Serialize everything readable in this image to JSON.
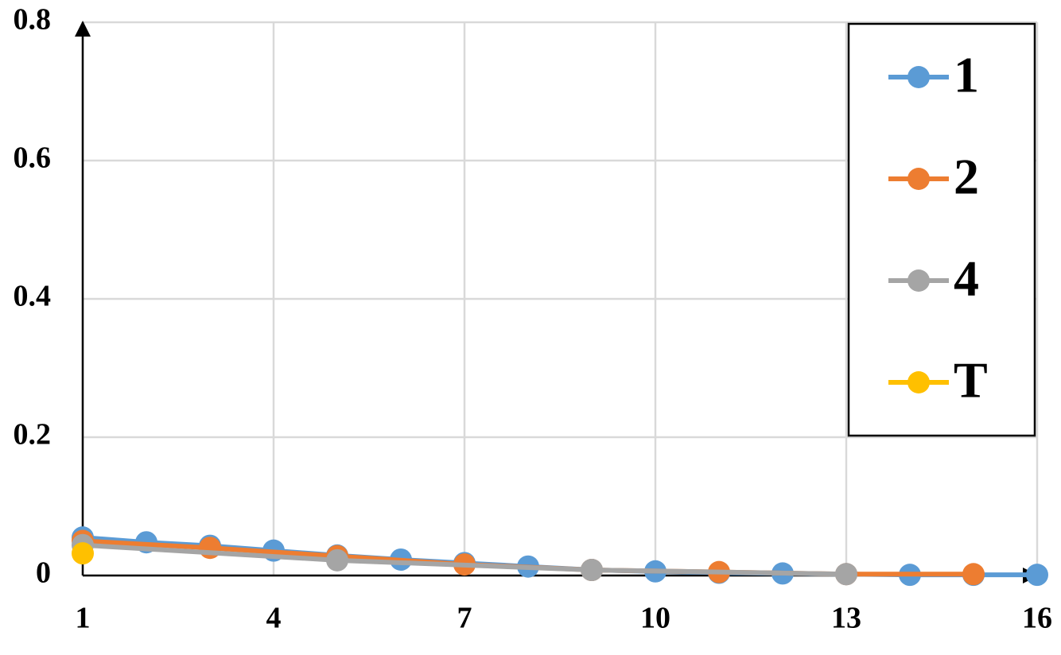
{
  "chart_data": {
    "type": "line",
    "xlim": [
      1,
      16
    ],
    "xticks": [
      1,
      4,
      7,
      10,
      13,
      16
    ],
    "ylim": [
      0,
      0.8
    ],
    "yticks": [
      0,
      0.2,
      0.4,
      0.6,
      0.8
    ],
    "grid": true,
    "legend": "upper right",
    "series": [
      {
        "name": "1",
        "color": "#5b9bd5",
        "x": [
          1,
          2,
          3,
          4,
          5,
          6,
          7,
          8,
          9,
          10,
          11,
          12,
          13,
          14,
          15,
          16
        ],
        "values": [
          0.055,
          0.048,
          0.043,
          0.036,
          0.029,
          0.023,
          0.018,
          0.013,
          0.008,
          0.006,
          0.004,
          0.003,
          0.002,
          0.001,
          0.001,
          0.001
        ]
      },
      {
        "name": "2",
        "color": "#ed7d31",
        "x": [
          1,
          3,
          5,
          7,
          9,
          11,
          13,
          15
        ],
        "values": [
          0.05,
          0.04,
          0.028,
          0.016,
          0.008,
          0.005,
          0.002,
          0.002
        ]
      },
      {
        "name": "4",
        "color": "#a5a5a5",
        "x": [
          1,
          5,
          9,
          13
        ],
        "values": [
          0.044,
          0.022,
          0.008,
          0.002
        ]
      },
      {
        "name": "T",
        "color": "#ffc000",
        "x": [
          1
        ],
        "values": [
          0.032
        ]
      }
    ]
  }
}
